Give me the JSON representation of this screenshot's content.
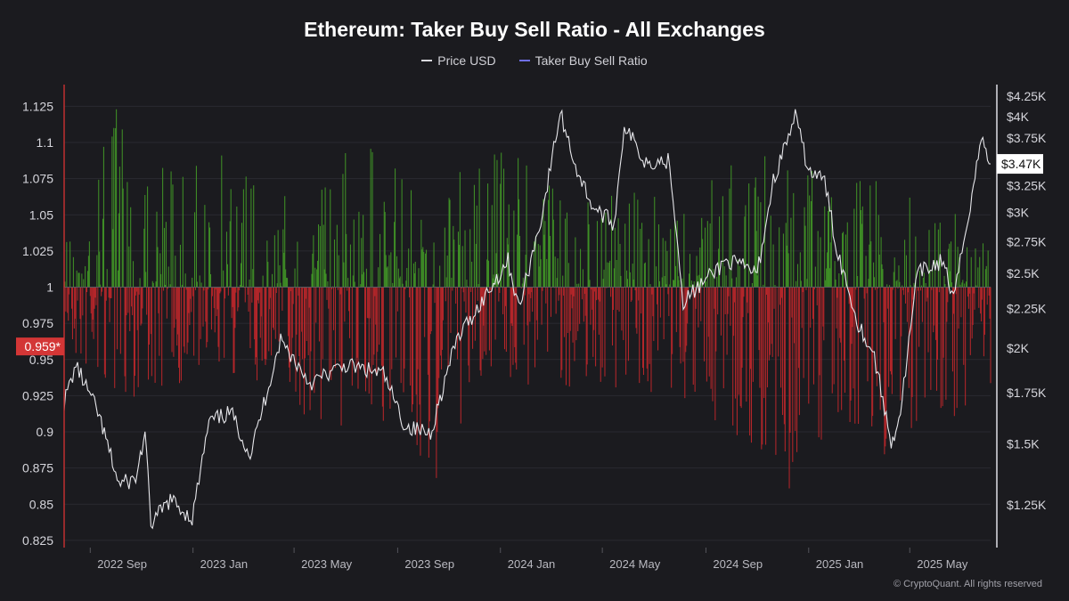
{
  "title": "Ethereum: Taker Buy Sell Ratio - All Exchanges",
  "legend": [
    {
      "label": "Price USD",
      "color": "#d9d9de"
    },
    {
      "label": "Taker Buy Sell Ratio",
      "color": "#6f6fe6"
    }
  ],
  "copyright": "© CryptoQuant. All rights reserved",
  "colors": {
    "background": "#1b1b1f",
    "bar_up": "#3f8f26",
    "bar_down": "#b3262a",
    "price": "#e6e6ea",
    "current_ratio_badge": "#d33636",
    "current_price_badge": "#ffffff"
  },
  "chart_data": {
    "type": "bar",
    "title": "Ethereum: Taker Buy Sell Ratio - All Exchanges",
    "x_range": [
      "2022-08-01",
      "2025-08-05"
    ],
    "left_axis": {
      "ylim": [
        0.82,
        1.14
      ],
      "ticks": [
        "0.825",
        "0.85",
        "0.875",
        "0.9",
        "0.925",
        "0.95",
        "0.975",
        "1",
        "1.025",
        "1.05",
        "1.075",
        "1.1",
        "1.125"
      ],
      "baseline": 1
    },
    "right_axis": {
      "scale": "log",
      "ylim": [
        1100,
        4400
      ],
      "ticks": [
        {
          "value": 1250,
          "label": "$1.25K"
        },
        {
          "value": 1500,
          "label": "$1.5K"
        },
        {
          "value": 1750,
          "label": "$1.75K"
        },
        {
          "value": 2000,
          "label": "$2K"
        },
        {
          "value": 2250,
          "label": "$2.25K"
        },
        {
          "value": 2500,
          "label": "$2.5K"
        },
        {
          "value": 2750,
          "label": "$2.75K"
        },
        {
          "value": 3000,
          "label": "$3K"
        },
        {
          "value": 3250,
          "label": "$3.25K"
        },
        {
          "value": 3750,
          "label": "$3.75K"
        },
        {
          "value": 4000,
          "label": "$4K"
        },
        {
          "value": 4250,
          "label": "$4.25K"
        }
      ]
    },
    "x_ticks": [
      {
        "date": "2022-09-01",
        "label": "2022 Sep"
      },
      {
        "date": "2023-01-01",
        "label": "2023 Jan"
      },
      {
        "date": "2023-05-01",
        "label": "2023 May"
      },
      {
        "date": "2023-09-01",
        "label": "2023 Sep"
      },
      {
        "date": "2024-01-01",
        "label": "2024 Jan"
      },
      {
        "date": "2024-05-01",
        "label": "2024 May"
      },
      {
        "date": "2024-09-01",
        "label": "2024 Sep"
      },
      {
        "date": "2025-01-01",
        "label": "2025 Jan"
      },
      {
        "date": "2025-05-01",
        "label": "2025 May"
      }
    ],
    "current": {
      "ratio": 0.959,
      "ratio_label": "0.959*",
      "price": 3470,
      "price_label": "$3.47K"
    },
    "ratio_envelope": [
      {
        "date": "2022-08-01",
        "high": 1.045,
        "low": 0.955
      },
      {
        "date": "2022-10-01",
        "high": 1.13,
        "low": 0.92
      },
      {
        "date": "2022-12-01",
        "high": 1.09,
        "low": 0.93
      },
      {
        "date": "2023-02-01",
        "high": 1.1,
        "low": 0.94
      },
      {
        "date": "2023-04-01",
        "high": 1.08,
        "low": 0.93
      },
      {
        "date": "2023-06-01",
        "high": 1.09,
        "low": 0.9
      },
      {
        "date": "2023-08-01",
        "high": 1.1,
        "low": 0.91
      },
      {
        "date": "2023-10-01",
        "high": 1.07,
        "low": 0.84
      },
      {
        "date": "2023-12-01",
        "high": 1.09,
        "low": 0.92
      },
      {
        "date": "2024-02-01",
        "high": 1.1,
        "low": 0.93
      },
      {
        "date": "2024-04-01",
        "high": 1.06,
        "low": 0.93
      },
      {
        "date": "2024-06-01",
        "high": 1.07,
        "low": 0.93
      },
      {
        "date": "2024-08-01",
        "high": 1.06,
        "low": 0.92
      },
      {
        "date": "2024-10-01",
        "high": 1.09,
        "low": 0.9
      },
      {
        "date": "2024-12-01",
        "high": 1.1,
        "low": 0.85
      },
      {
        "date": "2025-02-01",
        "high": 1.08,
        "low": 0.9
      },
      {
        "date": "2025-04-01",
        "high": 1.09,
        "low": 0.88
      },
      {
        "date": "2025-06-01",
        "high": 1.06,
        "low": 0.91
      },
      {
        "date": "2025-08-05",
        "high": 1.035,
        "low": 0.9
      }
    ],
    "price_series": [
      {
        "date": "2022-08-01",
        "value": 1700
      },
      {
        "date": "2022-08-15",
        "value": 1900
      },
      {
        "date": "2022-09-10",
        "value": 1650
      },
      {
        "date": "2022-10-05",
        "value": 1330
      },
      {
        "date": "2022-10-25",
        "value": 1350
      },
      {
        "date": "2022-11-05",
        "value": 1550
      },
      {
        "date": "2022-11-12",
        "value": 1180
      },
      {
        "date": "2022-12-05",
        "value": 1270
      },
      {
        "date": "2022-12-31",
        "value": 1200
      },
      {
        "date": "2023-01-20",
        "value": 1600
      },
      {
        "date": "2023-02-15",
        "value": 1650
      },
      {
        "date": "2023-03-10",
        "value": 1450
      },
      {
        "date": "2023-04-15",
        "value": 2050
      },
      {
        "date": "2023-05-20",
        "value": 1800
      },
      {
        "date": "2023-07-01",
        "value": 1900
      },
      {
        "date": "2023-08-15",
        "value": 1850
      },
      {
        "date": "2023-09-10",
        "value": 1580
      },
      {
        "date": "2023-10-10",
        "value": 1550
      },
      {
        "date": "2023-10-25",
        "value": 1780
      },
      {
        "date": "2023-11-10",
        "value": 2050
      },
      {
        "date": "2023-12-10",
        "value": 2300
      },
      {
        "date": "2024-01-10",
        "value": 2600
      },
      {
        "date": "2024-01-23",
        "value": 2250
      },
      {
        "date": "2024-02-20",
        "value": 3000
      },
      {
        "date": "2024-03-12",
        "value": 4050
      },
      {
        "date": "2024-04-01",
        "value": 3400
      },
      {
        "date": "2024-04-20",
        "value": 3050
      },
      {
        "date": "2024-05-15",
        "value": 2900
      },
      {
        "date": "2024-05-27",
        "value": 3900
      },
      {
        "date": "2024-06-20",
        "value": 3500
      },
      {
        "date": "2024-07-20",
        "value": 3500
      },
      {
        "date": "2024-08-05",
        "value": 2300
      },
      {
        "date": "2024-09-01",
        "value": 2450
      },
      {
        "date": "2024-09-25",
        "value": 2600
      },
      {
        "date": "2024-10-15",
        "value": 2550
      },
      {
        "date": "2024-11-01",
        "value": 2500
      },
      {
        "date": "2024-11-20",
        "value": 3300
      },
      {
        "date": "2024-12-16",
        "value": 4000
      },
      {
        "date": "2025-01-01",
        "value": 3400
      },
      {
        "date": "2025-01-20",
        "value": 3300
      },
      {
        "date": "2025-02-03",
        "value": 2700
      },
      {
        "date": "2025-03-01",
        "value": 2150
      },
      {
        "date": "2025-03-20",
        "value": 1950
      },
      {
        "date": "2025-04-09",
        "value": 1500
      },
      {
        "date": "2025-04-20",
        "value": 1650
      },
      {
        "date": "2025-05-10",
        "value": 2500
      },
      {
        "date": "2025-06-10",
        "value": 2600
      },
      {
        "date": "2025-06-22",
        "value": 2300
      },
      {
        "date": "2025-07-10",
        "value": 3000
      },
      {
        "date": "2025-07-25",
        "value": 3750
      },
      {
        "date": "2025-08-05",
        "value": 3470
      }
    ]
  }
}
